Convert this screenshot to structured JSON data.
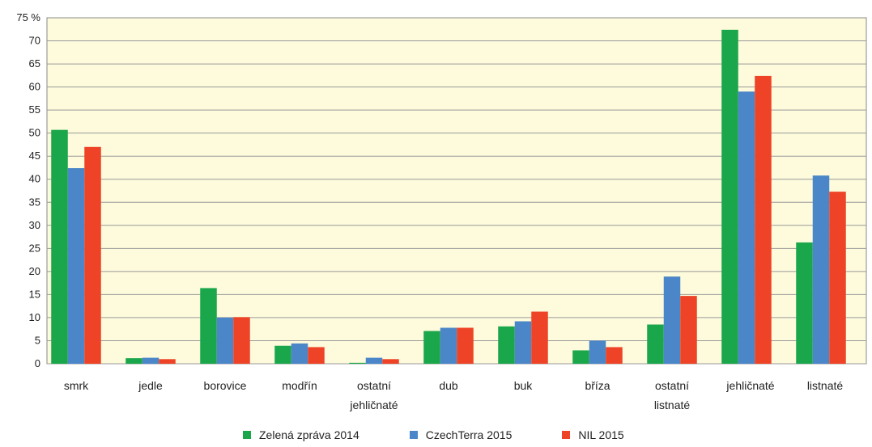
{
  "chart_data": {
    "type": "bar",
    "title": "",
    "xlabel": "",
    "ylabel": "",
    "y_unit_label": "75 %",
    "ylim": [
      0,
      75
    ],
    "yticks": [
      0,
      5,
      10,
      15,
      20,
      25,
      30,
      35,
      40,
      45,
      50,
      55,
      60,
      65,
      70
    ],
    "grid": true,
    "legend_position": "bottom",
    "categories": [
      [
        "smrk"
      ],
      [
        "jedle"
      ],
      [
        "borovice"
      ],
      [
        "modřín"
      ],
      [
        "ostatní",
        "jehličnaté"
      ],
      [
        "dub"
      ],
      [
        "buk"
      ],
      [
        "bříza"
      ],
      [
        "ostatní",
        "listnaté"
      ],
      [
        "jehličnaté"
      ],
      [
        "listnaté"
      ]
    ],
    "series": [
      {
        "name": "Zelená zpráva 2014",
        "color": "#1aa64a",
        "values": [
          50.7,
          1.2,
          16.4,
          3.9,
          0.2,
          7.1,
          8.1,
          2.9,
          8.5,
          72.4,
          26.3
        ]
      },
      {
        "name": "CzechTerra 2015",
        "color": "#4a86c8",
        "values": [
          42.4,
          1.3,
          10.0,
          4.4,
          1.3,
          7.8,
          9.2,
          5.0,
          18.9,
          59.0,
          40.8
        ]
      },
      {
        "name": "NIL 2015",
        "color": "#ee4326",
        "values": [
          47.0,
          1.0,
          10.1,
          3.6,
          1.0,
          7.8,
          11.3,
          3.6,
          14.7,
          62.4,
          37.3
        ]
      }
    ],
    "colors": {
      "plot_background": "#fdfbdc",
      "grid": "#9a9a9a"
    }
  }
}
